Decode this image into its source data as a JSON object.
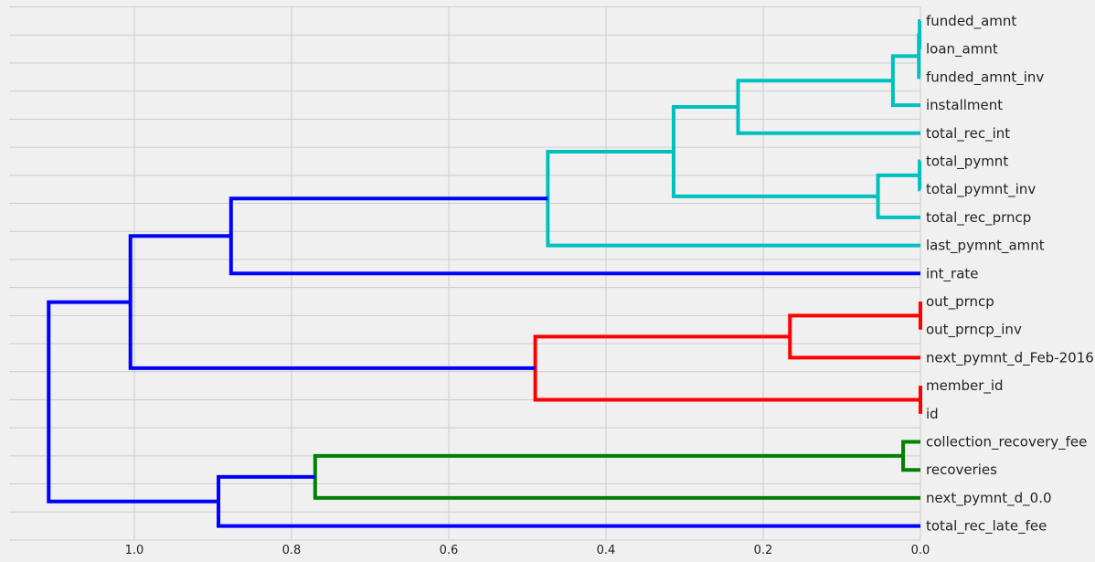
{
  "chart_data": {
    "type": "dendrogram",
    "orientation": "left",
    "title": "",
    "xlabel": "",
    "ylabel": "",
    "xlim": [
      1.16,
      0.0
    ],
    "x_ticks": [
      1.0,
      0.8,
      0.6,
      0.4,
      0.2,
      0.0
    ],
    "x_tick_labels": [
      "1.0",
      "0.8",
      "0.6",
      "0.4",
      "0.2",
      "0.0"
    ],
    "grid": true,
    "leaves": [
      "funded_amnt",
      "loan_amnt",
      "funded_amnt_inv",
      "installment",
      "total_rec_int",
      "total_pymnt",
      "total_pymnt_inv",
      "total_rec_prncp",
      "last_pymnt_amnt",
      "int_rate",
      "out_prncp",
      "out_prncp_inv",
      "next_pymnt_d_Feb-2016",
      "member_id",
      "id",
      "collection_recovery_fee",
      "recoveries",
      "next_pymnt_d_0.0",
      "total_rec_late_fee"
    ],
    "colors": {
      "cyan": "#00bfbf",
      "blue": "#0000ff",
      "red": "#ff0000",
      "green": "#008000"
    },
    "merges": [
      {
        "left": 0,
        "right": 1,
        "height": 0.001,
        "color": "cyan"
      },
      {
        "left": 19,
        "right": 2,
        "height": 0.002,
        "color": "cyan"
      },
      {
        "left": 20,
        "right": 3,
        "height": 0.035,
        "color": "cyan"
      },
      {
        "left": 21,
        "right": 4,
        "height": 0.232,
        "color": "cyan"
      },
      {
        "left": 5,
        "right": 6,
        "height": 0.001,
        "color": "cyan"
      },
      {
        "left": 23,
        "right": 7,
        "height": 0.054,
        "color": "cyan"
      },
      {
        "left": 22,
        "right": 24,
        "height": 0.314,
        "color": "cyan"
      },
      {
        "left": 25,
        "right": 8,
        "height": 0.474,
        "color": "cyan"
      },
      {
        "left": 26,
        "right": 9,
        "height": 0.877,
        "color": "blue"
      },
      {
        "left": 10,
        "right": 11,
        "height": 0.0,
        "color": "red"
      },
      {
        "left": 28,
        "right": 12,
        "height": 0.166,
        "color": "red"
      },
      {
        "left": 13,
        "right": 14,
        "height": 0.0,
        "color": "red"
      },
      {
        "left": 29,
        "right": 30,
        "height": 0.49,
        "color": "red"
      },
      {
        "left": 27,
        "right": 31,
        "height": 1.005,
        "color": "blue"
      },
      {
        "left": 15,
        "right": 16,
        "height": 0.022,
        "color": "green"
      },
      {
        "left": 33,
        "right": 17,
        "height": 0.77,
        "color": "green"
      },
      {
        "left": 34,
        "right": 18,
        "height": 0.893,
        "color": "blue"
      },
      {
        "left": 32,
        "right": 35,
        "height": 1.109,
        "color": "blue"
      }
    ]
  }
}
